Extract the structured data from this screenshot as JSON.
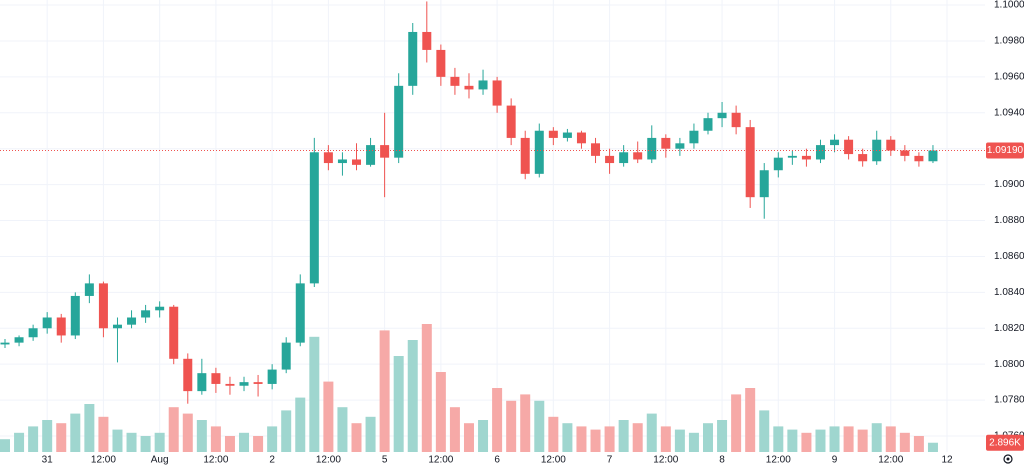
{
  "chart_data": {
    "type": "candlestick",
    "categories": [
      null,
      null,
      null,
      "31",
      null,
      null,
      null,
      "12:00",
      null,
      null,
      null,
      "Aug",
      null,
      null,
      null,
      "12:00",
      null,
      null,
      null,
      "2",
      null,
      null,
      null,
      "12:00",
      null,
      null,
      null,
      "5",
      null,
      null,
      null,
      "12:00",
      null,
      null,
      null,
      "6",
      null,
      null,
      null,
      "12:00",
      null,
      null,
      null,
      "7",
      null,
      null,
      null,
      "12:00",
      null,
      null,
      null,
      "8",
      null,
      null,
      null,
      "12:00",
      null,
      null,
      null,
      "9",
      null,
      null,
      null,
      "12:00",
      null,
      null,
      null,
      "12"
    ],
    "open": [
      1.0811,
      1.0812,
      1.0815,
      1.082,
      1.0826,
      1.0816,
      1.0838,
      1.0845,
      1.082,
      1.0822,
      1.0826,
      1.083,
      1.0832,
      1.0803,
      1.0785,
      1.0795,
      1.0789,
      1.0788,
      1.079,
      1.0789,
      1.0797,
      1.0812,
      1.0845,
      1.0918,
      1.0912,
      1.0914,
      1.0911,
      1.0922,
      1.0915,
      1.0955,
      1.0985,
      1.0975,
      1.096,
      1.0955,
      1.0953,
      1.0958,
      1.0944,
      1.0926,
      1.0906,
      1.093,
      1.0926,
      1.0929,
      1.0923,
      1.0916,
      1.0912,
      1.0918,
      1.0914,
      1.0926,
      1.092,
      1.0923,
      1.093,
      1.0937,
      1.094,
      1.0932,
      1.0893,
      1.0908,
      1.0915,
      1.0916,
      1.0914,
      1.0922,
      1.0925,
      1.0917,
      1.0913,
      1.0925,
      1.0919,
      1.0916,
      1.0913,
      null
    ],
    "high": [
      1.0814,
      1.0816,
      1.0822,
      1.0829,
      1.0828,
      1.084,
      1.085,
      1.0846,
      1.0826,
      1.083,
      1.0833,
      1.0835,
      1.0833,
      1.0806,
      1.0803,
      1.0798,
      1.0793,
      1.0793,
      1.0794,
      1.08,
      1.0815,
      1.085,
      1.0926,
      1.0922,
      1.0918,
      1.0923,
      1.0926,
      1.094,
      1.0962,
      1.099,
      1.1002,
      1.0978,
      1.0965,
      1.0962,
      1.0964,
      1.096,
      1.0948,
      1.093,
      1.0934,
      1.0932,
      1.0931,
      1.093,
      1.0926,
      1.092,
      1.0922,
      1.0924,
      1.0933,
      1.0928,
      1.0926,
      1.0934,
      1.094,
      1.0946,
      1.0944,
      1.0936,
      1.0912,
      1.0918,
      1.0919,
      1.092,
      1.0925,
      1.0928,
      1.0927,
      1.092,
      1.093,
      1.0927,
      1.0922,
      1.0918,
      1.0922,
      null
    ],
    "low": [
      1.0809,
      1.081,
      1.0813,
      1.0817,
      1.0812,
      1.0814,
      1.0834,
      1.0815,
      1.0801,
      1.082,
      1.0823,
      1.0826,
      1.08,
      1.0778,
      1.0783,
      1.0784,
      1.0783,
      1.0785,
      1.0782,
      1.0786,
      1.0795,
      1.081,
      1.0843,
      1.0908,
      1.0905,
      1.0908,
      1.091,
      1.0893,
      1.0912,
      1.095,
      1.0968,
      1.0955,
      1.095,
      1.0948,
      1.095,
      1.094,
      1.0922,
      1.0903,
      1.0904,
      1.0922,
      1.0924,
      1.092,
      1.0912,
      1.0906,
      1.091,
      1.0912,
      1.0912,
      1.0915,
      1.0916,
      1.092,
      1.0928,
      1.0932,
      1.0928,
      1.0887,
      1.0881,
      1.0904,
      1.0911,
      1.091,
      1.0912,
      1.0918,
      1.0914,
      1.091,
      1.0911,
      1.0916,
      1.0913,
      1.091,
      1.0912,
      null
    ],
    "close": [
      1.0812,
      1.0815,
      1.082,
      1.0826,
      1.0816,
      1.0838,
      1.0845,
      1.082,
      1.0822,
      1.0826,
      1.083,
      1.0832,
      1.0803,
      1.0785,
      1.0795,
      1.0789,
      1.0788,
      1.079,
      1.0789,
      1.0797,
      1.0812,
      1.0845,
      1.0918,
      1.0912,
      1.0914,
      1.0911,
      1.0922,
      1.0915,
      1.0955,
      1.0985,
      1.0975,
      1.096,
      1.0955,
      1.0953,
      1.0958,
      1.0944,
      1.0926,
      1.0906,
      1.093,
      1.0926,
      1.0929,
      1.0923,
      1.0916,
      1.0912,
      1.0918,
      1.0914,
      1.0926,
      1.092,
      1.0923,
      1.093,
      1.0937,
      1.094,
      1.0932,
      1.0893,
      1.0908,
      1.0915,
      1.0916,
      1.0914,
      1.0922,
      1.0925,
      1.0917,
      1.0913,
      1.0925,
      1.0919,
      1.0916,
      1.0913,
      1.0919,
      null
    ],
    "volume": [
      4000,
      6000,
      8000,
      10000,
      9000,
      12000,
      15000,
      11000,
      7000,
      6000,
      5000,
      6000,
      14000,
      12000,
      10000,
      8000,
      5000,
      6000,
      5000,
      8000,
      13000,
      17000,
      36000,
      22000,
      14000,
      9000,
      11000,
      38000,
      30000,
      35000,
      40000,
      25000,
      14000,
      9000,
      10000,
      20000,
      16000,
      18000,
      16000,
      11000,
      9000,
      8000,
      7000,
      8000,
      10000,
      9000,
      12000,
      8000,
      7000,
      6000,
      9000,
      10000,
      18000,
      20000,
      13000,
      8000,
      7000,
      6000,
      7000,
      8000,
      8000,
      7000,
      9000,
      8000,
      6000,
      5000,
      2896,
      null
    ],
    "colors": {
      "up": "#26a69a",
      "down": "#ef5350",
      "volume_up": "#9fd6cf",
      "volume_down": "#f6a9a7"
    },
    "ylim": [
      1.07511,
      1.10028
    ],
    "yticks": [
      {
        "value": 1.1,
        "label": "1.10000"
      },
      {
        "value": 1.098,
        "label": "1.09800"
      },
      {
        "value": 1.096,
        "label": "1.09600"
      },
      {
        "value": 1.094,
        "label": "1.09400"
      },
      {
        "value": 1.092,
        "label": "1.09200"
      },
      {
        "value": 1.09,
        "label": "1.09000"
      },
      {
        "value": 1.088,
        "label": "1.08800"
      },
      {
        "value": 1.086,
        "label": "1.08600"
      },
      {
        "value": 1.084,
        "label": "1.08400"
      },
      {
        "value": 1.082,
        "label": "1.08200"
      },
      {
        "value": 1.08,
        "label": "1.08000"
      },
      {
        "value": 1.078,
        "label": "1.07800"
      },
      {
        "value": 1.076,
        "label": "1.07600"
      }
    ],
    "vlim": [
      0,
      50000
    ],
    "grid": true,
    "price_line": {
      "value": 1.0919,
      "label": "1.09190",
      "color": "#ef5350"
    },
    "volume_label": {
      "value": 2896,
      "label": "2.896K",
      "color": "#ef5350"
    }
  }
}
